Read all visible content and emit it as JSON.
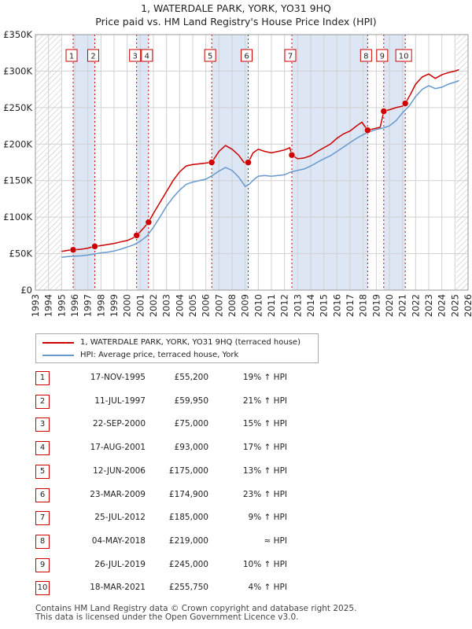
{
  "title_line1": "1, WATERDALE PARK, YORK, YO31 9HQ",
  "title_line2": "Price paid vs. HM Land Registry's House Price Index (HPI)",
  "colors": {
    "property": "#cc0000",
    "hpi": "#6699cc",
    "shade": "#dde6f5",
    "grid": "#d0d0d0",
    "marker_box": "#cc0000"
  },
  "legend": {
    "property_label": "1, WATERDALE PARK, YORK, YO31 9HQ (terraced house)",
    "hpi_label": "HPI: Average price, terraced house, York"
  },
  "sales": [
    {
      "num": "1",
      "date": "17-NOV-1995",
      "price": "£55,200",
      "hpi": "19% ↑ HPI"
    },
    {
      "num": "2",
      "date": "11-JUL-1997",
      "price": "£59,950",
      "hpi": "21% ↑ HPI"
    },
    {
      "num": "3",
      "date": "22-SEP-2000",
      "price": "£75,000",
      "hpi": "15% ↑ HPI"
    },
    {
      "num": "4",
      "date": "17-AUG-2001",
      "price": "£93,000",
      "hpi": "17% ↑ HPI"
    },
    {
      "num": "5",
      "date": "12-JUN-2006",
      "price": "£175,000",
      "hpi": "13% ↑ HPI"
    },
    {
      "num": "6",
      "date": "23-MAR-2009",
      "price": "£174,900",
      "hpi": "23% ↑ HPI"
    },
    {
      "num": "7",
      "date": "25-JUL-2012",
      "price": "£185,000",
      "hpi": "9% ↑ HPI"
    },
    {
      "num": "8",
      "date": "04-MAY-2018",
      "price": "£219,000",
      "hpi": "≈ HPI"
    },
    {
      "num": "9",
      "date": "26-JUL-2019",
      "price": "£245,000",
      "hpi": "10% ↑ HPI"
    },
    {
      "num": "10",
      "date": "18-MAR-2021",
      "price": "£255,750",
      "hpi": "4% ↑ HPI"
    }
  ],
  "footer_line1": "Contains HM Land Registry data © Crown copyright and database right 2025.",
  "footer_line2": "This data is licensed under the Open Government Licence v3.0.",
  "chart_data": {
    "type": "line",
    "title": "Price paid vs. HM Land Registry's House Price Index (HPI)",
    "xlabel": "",
    "ylabel": "",
    "xlim": [
      1993,
      2026
    ],
    "ylim": [
      0,
      350000
    ],
    "y_ticks": [
      0,
      50000,
      100000,
      150000,
      200000,
      250000,
      300000,
      350000
    ],
    "y_tick_labels": [
      "£0",
      "£50K",
      "£100K",
      "£150K",
      "£200K",
      "£250K",
      "£300K",
      "£350K"
    ],
    "x_ticks": [
      1993,
      1994,
      1995,
      1996,
      1997,
      1998,
      1999,
      2000,
      2001,
      2002,
      2003,
      2004,
      2005,
      2006,
      2007,
      2008,
      2009,
      2010,
      2011,
      2012,
      2013,
      2014,
      2015,
      2016,
      2017,
      2018,
      2019,
      2020,
      2021,
      2022,
      2023,
      2024,
      2025,
      2026
    ],
    "x_tick_labels": [
      "1993",
      "1994",
      "1995",
      "1996",
      "1997",
      "1998",
      "1999",
      "2000",
      "2001",
      "2002",
      "2003",
      "2004",
      "2005",
      "2006",
      "2007",
      "2008",
      "2009",
      "2010",
      "2011",
      "2012",
      "2013",
      "2014",
      "2015",
      "2016",
      "2017",
      "2018",
      "2019",
      "2020",
      "2021",
      "2022",
      "2023",
      "2024",
      "2025",
      "2026"
    ],
    "shaded_ranges": [
      [
        1995.87,
        1997.53
      ],
      [
        2000.72,
        2001.63
      ],
      [
        2006.45,
        2009.23
      ],
      [
        2012.56,
        2018.34
      ],
      [
        2019.57,
        2021.21
      ]
    ],
    "hatched_ranges": [
      [
        1993,
        1995.0
      ],
      [
        2025.1,
        2026
      ]
    ],
    "sales": [
      {
        "label": "1",
        "x": 1995.88,
        "y": 55200
      },
      {
        "label": "2",
        "x": 1997.53,
        "y": 59950
      },
      {
        "label": "3",
        "x": 2000.72,
        "y": 75000
      },
      {
        "label": "4",
        "x": 2001.63,
        "y": 93000
      },
      {
        "label": "5",
        "x": 2006.45,
        "y": 175000
      },
      {
        "label": "6",
        "x": 2009.23,
        "y": 174900
      },
      {
        "label": "7",
        "x": 2012.56,
        "y": 185000
      },
      {
        "label": "8",
        "x": 2018.34,
        "y": 219000
      },
      {
        "label": "9",
        "x": 2019.57,
        "y": 245000
      },
      {
        "label": "10",
        "x": 2021.21,
        "y": 255750
      }
    ],
    "series": [
      {
        "name": "1, WATERDALE PARK, YORK, YO31 9HQ (terraced house)",
        "points": [
          [
            1995.0,
            53000
          ],
          [
            1995.5,
            54500
          ],
          [
            1995.88,
            55200
          ],
          [
            1996.5,
            56000
          ],
          [
            1997.0,
            57500
          ],
          [
            1997.53,
            59950
          ],
          [
            1998.0,
            61000
          ],
          [
            1998.5,
            62500
          ],
          [
            1999.0,
            64000
          ],
          [
            1999.5,
            66000
          ],
          [
            2000.0,
            68000
          ],
          [
            2000.4,
            71000
          ],
          [
            2000.72,
            75000
          ],
          [
            2001.0,
            80000
          ],
          [
            2001.3,
            86000
          ],
          [
            2001.63,
            93000
          ],
          [
            2002.0,
            105000
          ],
          [
            2002.5,
            120000
          ],
          [
            2003.0,
            135000
          ],
          [
            2003.5,
            150000
          ],
          [
            2004.0,
            162000
          ],
          [
            2004.5,
            170000
          ],
          [
            2005.0,
            172000
          ],
          [
            2005.5,
            173000
          ],
          [
            2006.0,
            174000
          ],
          [
            2006.45,
            175000
          ],
          [
            2007.0,
            190000
          ],
          [
            2007.5,
            198000
          ],
          [
            2008.0,
            193000
          ],
          [
            2008.5,
            185000
          ],
          [
            2008.9,
            175000
          ],
          [
            2009.23,
            174900
          ],
          [
            2009.6,
            188000
          ],
          [
            2010.0,
            193000
          ],
          [
            2010.5,
            190000
          ],
          [
            2011.0,
            188000
          ],
          [
            2011.5,
            190000
          ],
          [
            2012.0,
            192000
          ],
          [
            2012.4,
            195000
          ],
          [
            2012.56,
            185000
          ],
          [
            2013.0,
            180000
          ],
          [
            2013.5,
            181000
          ],
          [
            2014.0,
            184000
          ],
          [
            2014.5,
            190000
          ],
          [
            2015.0,
            195000
          ],
          [
            2015.5,
            200000
          ],
          [
            2016.0,
            208000
          ],
          [
            2016.5,
            214000
          ],
          [
            2017.0,
            218000
          ],
          [
            2017.5,
            225000
          ],
          [
            2017.9,
            230000
          ],
          [
            2018.34,
            219000
          ],
          [
            2018.8,
            221000
          ],
          [
            2019.3,
            223000
          ],
          [
            2019.57,
            245000
          ],
          [
            2020.0,
            247000
          ],
          [
            2020.5,
            250000
          ],
          [
            2021.0,
            252000
          ],
          [
            2021.21,
            255750
          ],
          [
            2021.6,
            268000
          ],
          [
            2022.0,
            282000
          ],
          [
            2022.5,
            292000
          ],
          [
            2023.0,
            296000
          ],
          [
            2023.5,
            290000
          ],
          [
            2024.0,
            295000
          ],
          [
            2024.5,
            298000
          ],
          [
            2025.0,
            300000
          ],
          [
            2025.3,
            302000
          ]
        ]
      },
      {
        "name": "HPI: Average price, terraced house, York",
        "points": [
          [
            1995.0,
            45000
          ],
          [
            1995.5,
            46000
          ],
          [
            1996.0,
            46500
          ],
          [
            1996.5,
            47000
          ],
          [
            1997.0,
            48000
          ],
          [
            1997.5,
            49500
          ],
          [
            1998.0,
            51000
          ],
          [
            1998.5,
            52000
          ],
          [
            1999.0,
            53500
          ],
          [
            1999.5,
            56000
          ],
          [
            2000.0,
            59000
          ],
          [
            2000.5,
            62000
          ],
          [
            2001.0,
            67000
          ],
          [
            2001.5,
            74000
          ],
          [
            2002.0,
            86000
          ],
          [
            2002.5,
            100000
          ],
          [
            2003.0,
            115000
          ],
          [
            2003.5,
            127000
          ],
          [
            2004.0,
            137000
          ],
          [
            2004.5,
            145000
          ],
          [
            2005.0,
            148000
          ],
          [
            2005.5,
            150000
          ],
          [
            2006.0,
            152000
          ],
          [
            2006.5,
            157000
          ],
          [
            2007.0,
            163000
          ],
          [
            2007.5,
            168000
          ],
          [
            2008.0,
            164000
          ],
          [
            2008.5,
            155000
          ],
          [
            2009.0,
            142000
          ],
          [
            2009.3,
            145000
          ],
          [
            2009.7,
            152000
          ],
          [
            2010.0,
            156000
          ],
          [
            2010.5,
            157000
          ],
          [
            2011.0,
            156000
          ],
          [
            2011.5,
            157000
          ],
          [
            2012.0,
            158000
          ],
          [
            2012.5,
            162000
          ],
          [
            2013.0,
            164000
          ],
          [
            2013.5,
            166000
          ],
          [
            2014.0,
            170000
          ],
          [
            2014.5,
            175000
          ],
          [
            2015.0,
            180000
          ],
          [
            2015.5,
            184000
          ],
          [
            2016.0,
            190000
          ],
          [
            2016.5,
            196000
          ],
          [
            2017.0,
            202000
          ],
          [
            2017.5,
            208000
          ],
          [
            2018.0,
            213000
          ],
          [
            2018.5,
            217000
          ],
          [
            2019.0,
            220000
          ],
          [
            2019.5,
            222000
          ],
          [
            2020.0,
            225000
          ],
          [
            2020.5,
            232000
          ],
          [
            2021.0,
            243000
          ],
          [
            2021.5,
            252000
          ],
          [
            2022.0,
            265000
          ],
          [
            2022.5,
            275000
          ],
          [
            2023.0,
            280000
          ],
          [
            2023.5,
            276000
          ],
          [
            2024.0,
            278000
          ],
          [
            2024.5,
            282000
          ],
          [
            2025.0,
            285000
          ],
          [
            2025.3,
            287000
          ]
        ]
      }
    ]
  }
}
